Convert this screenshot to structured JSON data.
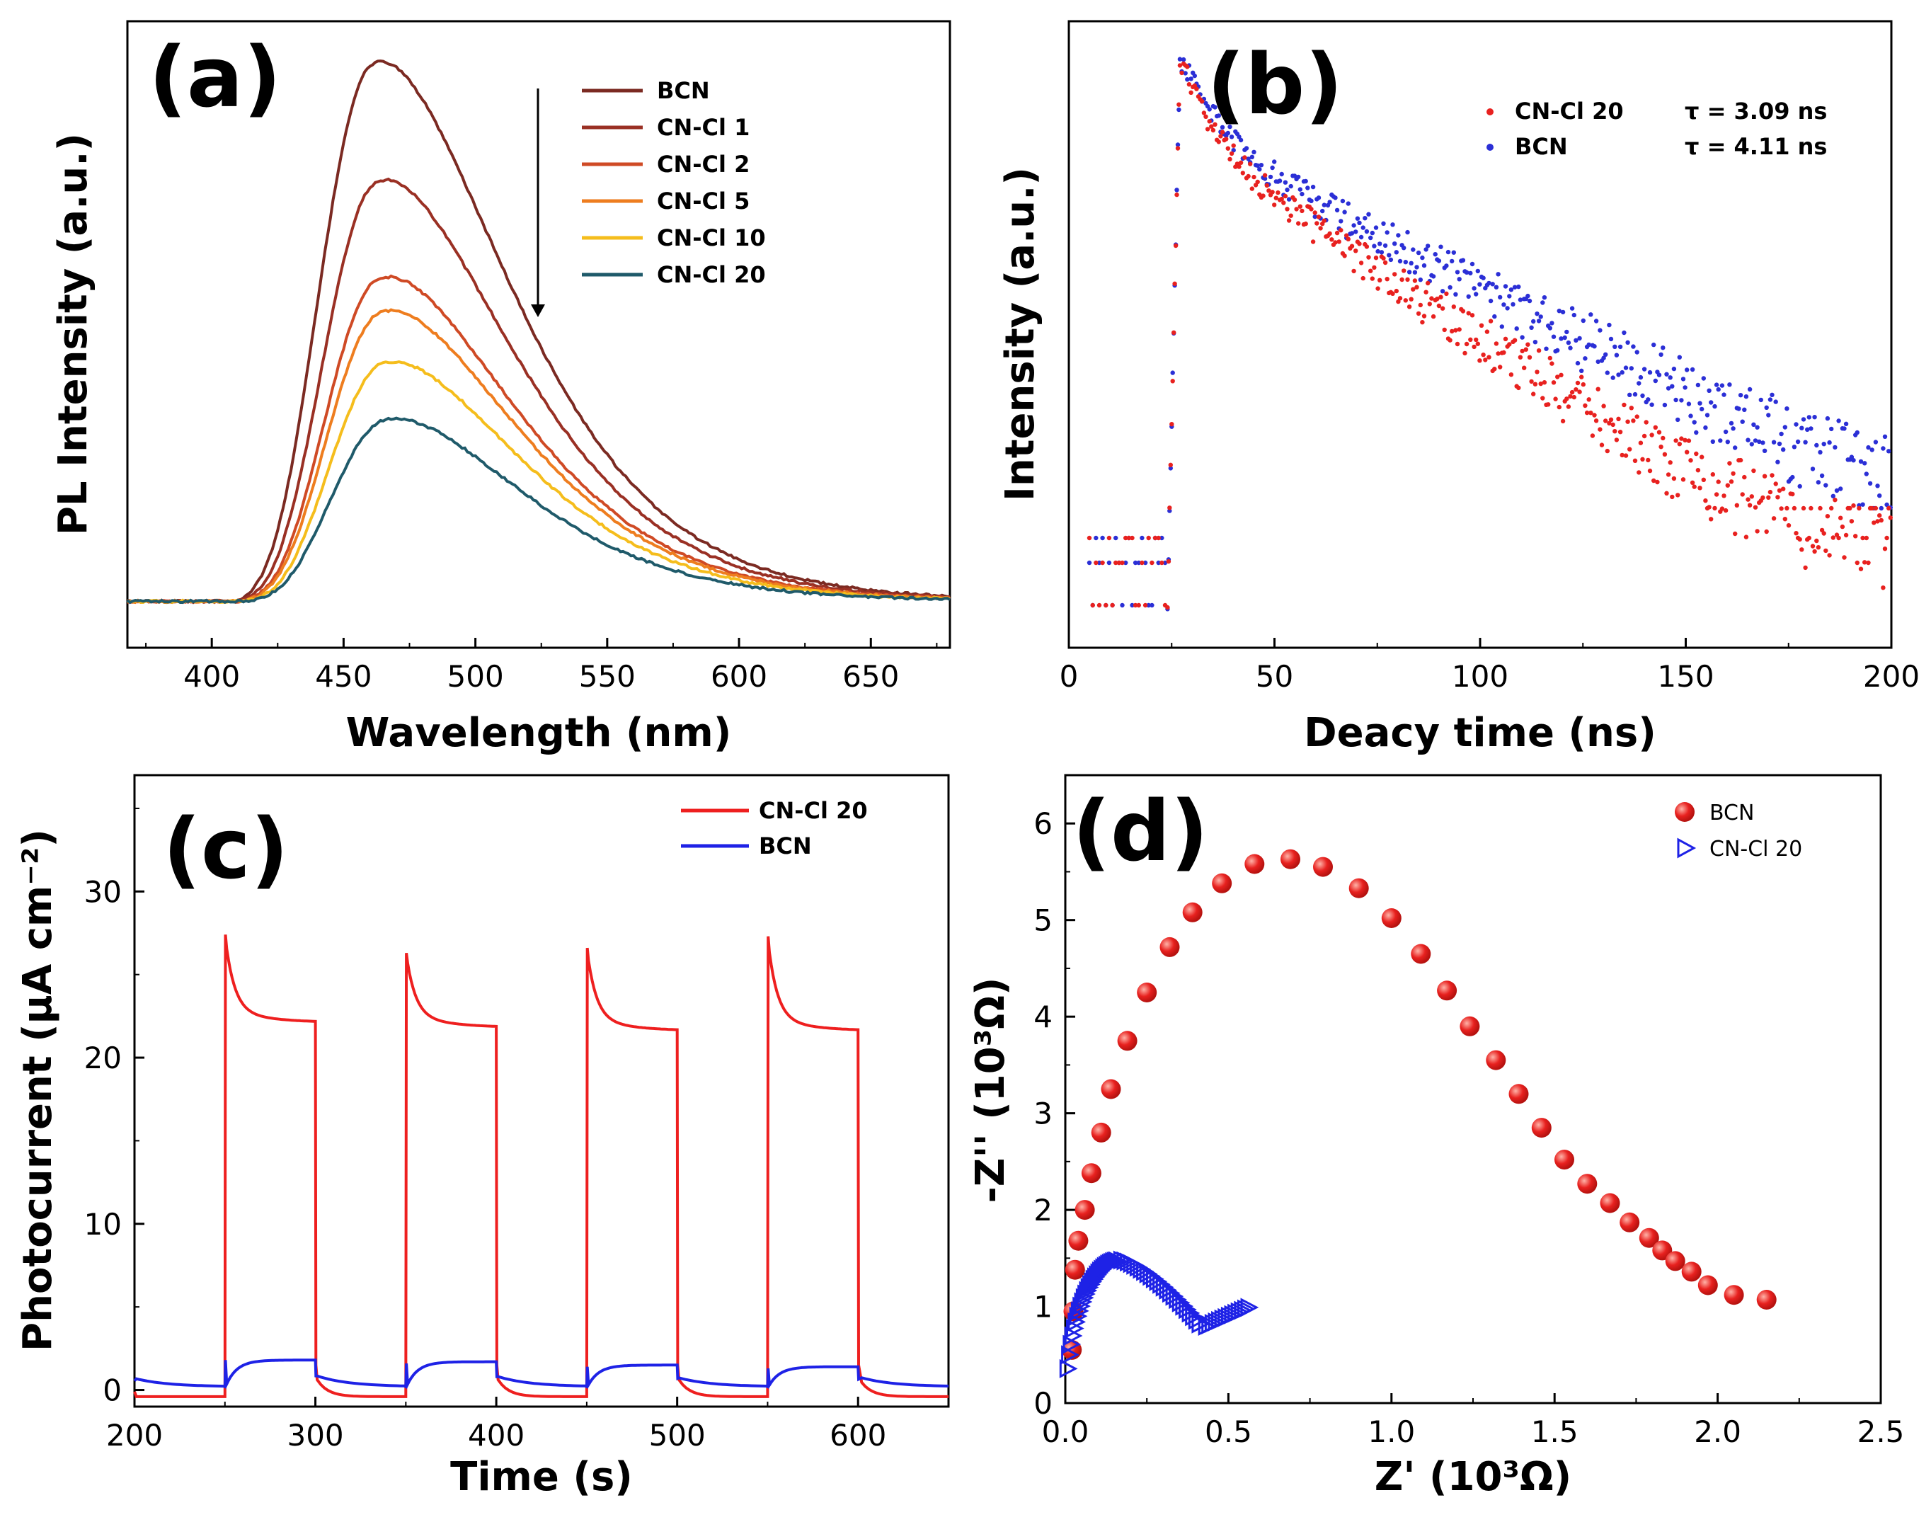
{
  "panels": {
    "a": {
      "letter": "(a)"
    },
    "b": {
      "letter": "(b)"
    },
    "c": {
      "letter": "(c)"
    },
    "d": {
      "letter": "(d)"
    }
  },
  "chart_data": [
    {
      "id": "a",
      "type": "line",
      "xlabel": "Wavelength (nm)",
      "ylabel": "PL Intensity (a.u.)",
      "xlim": [
        368,
        680
      ],
      "ylim": [
        -0.08,
        1.0
      ],
      "xticks": [
        400,
        450,
        500,
        550,
        600,
        650
      ],
      "legend_position": "top-right",
      "series": [
        {
          "name": "BCN",
          "color": "#7b2a22",
          "peak": 0.95,
          "center": 460,
          "onset": 405
        },
        {
          "name": "CN-Cl 1",
          "color": "#9a3024",
          "peak": 0.74,
          "center": 462,
          "onset": 406
        },
        {
          "name": "CN-Cl 2",
          "color": "#cf4a25",
          "peak": 0.57,
          "center": 463,
          "onset": 407
        },
        {
          "name": "CN-Cl 5",
          "color": "#ee7d1f",
          "peak": 0.51,
          "center": 464,
          "onset": 407
        },
        {
          "name": "CN-Cl 10",
          "color": "#f5bd1c",
          "peak": 0.42,
          "center": 465,
          "onset": 408
        },
        {
          "name": "CN-Cl 20",
          "color": "#1f5a6a",
          "peak": 0.32,
          "center": 466,
          "onset": 408
        }
      ]
    },
    {
      "id": "b",
      "type": "scatter",
      "xlabel": "Deacy time (ns)",
      "ylabel": "Intensity (a.u.)",
      "xlim": [
        0,
        200
      ],
      "xticks": [
        0,
        50,
        100,
        150,
        200
      ],
      "legend_position": "top-right",
      "series": [
        {
          "name": "CN-Cl 20",
          "color": "#e8211f",
          "tau_label": "τ = 3.09 ns",
          "tau": 3.09
        },
        {
          "name": "BCN",
          "color": "#2b2fd6",
          "tau_label": "τ = 4.11 ns",
          "tau": 4.11
        }
      ],
      "peak_time": 27
    },
    {
      "id": "c",
      "type": "line",
      "xlabel": "Time (s)",
      "ylabel": "Photocurrent (μA cm⁻²)",
      "xlim": [
        200,
        650
      ],
      "ylim": [
        -1,
        37
      ],
      "xticks": [
        200,
        300,
        400,
        500,
        600
      ],
      "yticks": [
        0,
        10,
        20,
        30
      ],
      "legend_position": "top-right",
      "on_intervals": [
        [
          250,
          300
        ],
        [
          350,
          400
        ],
        [
          450,
          500
        ],
        [
          550,
          600
        ]
      ],
      "series": [
        {
          "name": "CN-Cl 20",
          "color": "#ee1f1f",
          "spikes": [
            27.4,
            26.3,
            26.6,
            27.3
          ],
          "plateaus": [
            22.1,
            21.8,
            21.6,
            21.6
          ],
          "dark": -0.4
        },
        {
          "name": "BCN",
          "color": "#1e22e6",
          "spikes": [
            1.8,
            1.6,
            1.4,
            1.3
          ],
          "plateaus": [
            1.7,
            1.6,
            1.4,
            1.3
          ],
          "dark": 0.2
        }
      ]
    },
    {
      "id": "d",
      "type": "scatter",
      "xlabel": "Z' (10³Ω)",
      "ylabel": "-Z'' (10³Ω)",
      "xlim": [
        0,
        2.5
      ],
      "ylim": [
        0,
        6.5
      ],
      "xticks": [
        0.0,
        0.5,
        1.0,
        1.5,
        2.0,
        2.5
      ],
      "yticks": [
        0,
        1,
        2,
        3,
        4,
        5,
        6
      ],
      "legend_position": "top-right",
      "series": [
        {
          "name": "BCN",
          "color": "#e8211f",
          "marker": "circle",
          "points": [
            [
              0.02,
              0.55
            ],
            [
              0.025,
              0.95
            ],
            [
              0.03,
              1.38
            ],
            [
              0.04,
              1.68
            ],
            [
              0.06,
              2.0
            ],
            [
              0.08,
              2.38
            ],
            [
              0.11,
              2.8
            ],
            [
              0.14,
              3.25
            ],
            [
              0.19,
              3.75
            ],
            [
              0.25,
              4.25
            ],
            [
              0.32,
              4.72
            ],
            [
              0.39,
              5.08
            ],
            [
              0.48,
              5.38
            ],
            [
              0.58,
              5.58
            ],
            [
              0.69,
              5.63
            ],
            [
              0.79,
              5.55
            ],
            [
              0.9,
              5.33
            ],
            [
              1.0,
              5.02
            ],
            [
              1.09,
              4.65
            ],
            [
              1.17,
              4.27
            ],
            [
              1.24,
              3.9
            ],
            [
              1.32,
              3.55
            ],
            [
              1.39,
              3.2
            ],
            [
              1.46,
              2.85
            ],
            [
              1.53,
              2.52
            ],
            [
              1.6,
              2.27
            ],
            [
              1.67,
              2.07
            ],
            [
              1.73,
              1.87
            ],
            [
              1.79,
              1.71
            ],
            [
              1.83,
              1.58
            ],
            [
              1.87,
              1.47
            ],
            [
              1.92,
              1.36
            ],
            [
              1.97,
              1.22
            ],
            [
              2.05,
              1.12
            ],
            [
              2.15,
              1.07
            ]
          ]
        },
        {
          "name": "CN-Cl 20",
          "color": "#1e22e6",
          "marker": "triangle-right",
          "arc": {
            "r": 0.16,
            "cx": 0.17,
            "k": 9.0
          },
          "tail_end": [
            0.57,
            1.0
          ]
        }
      ]
    }
  ]
}
